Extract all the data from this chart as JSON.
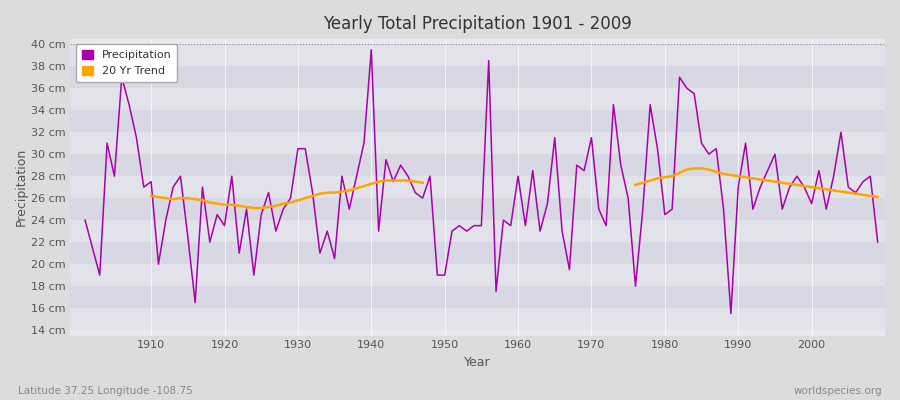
{
  "title": "Yearly Total Precipitation 1901 - 2009",
  "xlabel": "Year",
  "ylabel": "Precipitation",
  "lat_lon_label": "Latitude 37.25 Longitude -108.75",
  "watermark": "worldspecies.org",
  "ylim": [
    13.5,
    40.5
  ],
  "ytick_min": 14,
  "ytick_max": 40,
  "ytick_step": 2,
  "xlim": [
    1899,
    2010
  ],
  "bg_color": "#dcdcdc",
  "plot_bg_color": "#e8e8f0",
  "precip_color": "#aa00aa",
  "trend_color": "#ffa500",
  "precip_linewidth": 1.1,
  "trend_linewidth": 1.8,
  "years": [
    1901,
    1902,
    1903,
    1904,
    1905,
    1906,
    1907,
    1908,
    1909,
    1910,
    1911,
    1912,
    1913,
    1914,
    1915,
    1916,
    1917,
    1918,
    1919,
    1920,
    1921,
    1922,
    1923,
    1924,
    1925,
    1926,
    1927,
    1928,
    1929,
    1930,
    1931,
    1932,
    1933,
    1934,
    1935,
    1936,
    1937,
    1938,
    1939,
    1940,
    1941,
    1942,
    1943,
    1944,
    1945,
    1946,
    1947,
    1948,
    1949,
    1950,
    1951,
    1952,
    1953,
    1954,
    1955,
    1956,
    1957,
    1958,
    1959,
    1960,
    1961,
    1962,
    1963,
    1964,
    1965,
    1966,
    1967,
    1968,
    1969,
    1970,
    1971,
    1972,
    1973,
    1974,
    1975,
    1976,
    1977,
    1978,
    1979,
    1980,
    1981,
    1982,
    1983,
    1984,
    1985,
    1986,
    1987,
    1988,
    1989,
    1990,
    1991,
    1992,
    1993,
    1994,
    1995,
    1996,
    1997,
    1998,
    1999,
    2000,
    2001,
    2002,
    2003,
    2004,
    2005,
    2006,
    2007,
    2008,
    2009
  ],
  "precip": [
    24.0,
    21.5,
    19.0,
    31.0,
    28.0,
    37.0,
    34.5,
    31.5,
    27.0,
    27.5,
    20.0,
    24.0,
    27.0,
    28.0,
    22.5,
    16.5,
    27.0,
    22.0,
    24.5,
    23.5,
    28.0,
    21.0,
    25.0,
    19.0,
    24.5,
    26.5,
    23.0,
    25.0,
    26.0,
    30.5,
    30.5,
    26.5,
    21.0,
    23.0,
    20.5,
    28.0,
    25.0,
    28.0,
    31.0,
    39.5,
    23.0,
    29.5,
    27.5,
    29.0,
    28.0,
    26.5,
    26.0,
    28.0,
    19.0,
    19.0,
    23.0,
    23.5,
    23.0,
    23.5,
    23.5,
    38.5,
    17.5,
    24.0,
    23.5,
    28.0,
    23.5,
    28.5,
    23.0,
    25.5,
    31.5,
    23.0,
    19.5,
    29.0,
    28.5,
    31.5,
    25.0,
    23.5,
    34.5,
    29.0,
    26.0,
    18.0,
    25.0,
    34.5,
    30.5,
    24.5,
    25.0,
    37.0,
    36.0,
    35.5,
    31.0,
    30.0,
    30.5,
    25.0,
    15.5,
    27.0,
    31.0,
    25.0,
    27.0,
    28.5,
    30.0,
    25.0,
    27.0,
    28.0,
    27.0,
    25.5,
    28.5,
    25.0,
    28.0,
    32.0,
    27.0,
    26.5,
    27.5,
    28.0,
    22.0
  ],
  "trend_seg1_years": [
    1910,
    1911,
    1912,
    1913,
    1914,
    1915,
    1916,
    1917,
    1918,
    1919,
    1920,
    1921,
    1922,
    1923,
    1924,
    1925,
    1926,
    1927,
    1928,
    1929,
    1930,
    1931,
    1932,
    1933,
    1934,
    1935,
    1936,
    1937,
    1938,
    1939,
    1940,
    1941,
    1942,
    1943,
    1944,
    1945,
    1946,
    1947
  ],
  "trend_seg1": [
    26.2,
    26.1,
    26.0,
    25.9,
    26.0,
    26.0,
    25.9,
    25.8,
    25.6,
    25.5,
    25.4,
    25.4,
    25.3,
    25.2,
    25.1,
    25.1,
    25.2,
    25.3,
    25.5,
    25.6,
    25.8,
    26.0,
    26.2,
    26.4,
    26.5,
    26.5,
    26.6,
    26.7,
    26.9,
    27.1,
    27.3,
    27.5,
    27.6,
    27.6,
    27.6,
    27.6,
    27.5,
    27.4
  ],
  "trend_seg2_years": [
    1976,
    1977,
    1978,
    1979,
    1980,
    1981,
    1982,
    1983,
    1984,
    1985,
    1986,
    1987,
    1988,
    1989,
    1990,
    1991,
    1992,
    1993,
    1994,
    1995,
    1996,
    1997,
    1998,
    1999,
    2000,
    2001,
    2002,
    2003,
    2004,
    2005,
    2006,
    2007,
    2008,
    2009
  ],
  "trend_seg2": [
    27.2,
    27.4,
    27.6,
    27.8,
    27.9,
    28.0,
    28.3,
    28.6,
    28.7,
    28.7,
    28.6,
    28.4,
    28.2,
    28.1,
    28.0,
    27.9,
    27.8,
    27.7,
    27.6,
    27.5,
    27.4,
    27.3,
    27.2,
    27.1,
    27.0,
    26.9,
    26.8,
    26.7,
    26.6,
    26.5,
    26.4,
    26.3,
    26.2,
    26.1
  ],
  "band_colors": [
    "#e2e2ea",
    "#d8d8e4"
  ],
  "band_ranges": [
    [
      14,
      16
    ],
    [
      16,
      18
    ],
    [
      18,
      20
    ],
    [
      20,
      22
    ],
    [
      22,
      24
    ],
    [
      24,
      26
    ],
    [
      26,
      28
    ],
    [
      28,
      30
    ],
    [
      30,
      32
    ],
    [
      32,
      34
    ],
    [
      34,
      36
    ],
    [
      36,
      38
    ],
    [
      38,
      40
    ]
  ]
}
